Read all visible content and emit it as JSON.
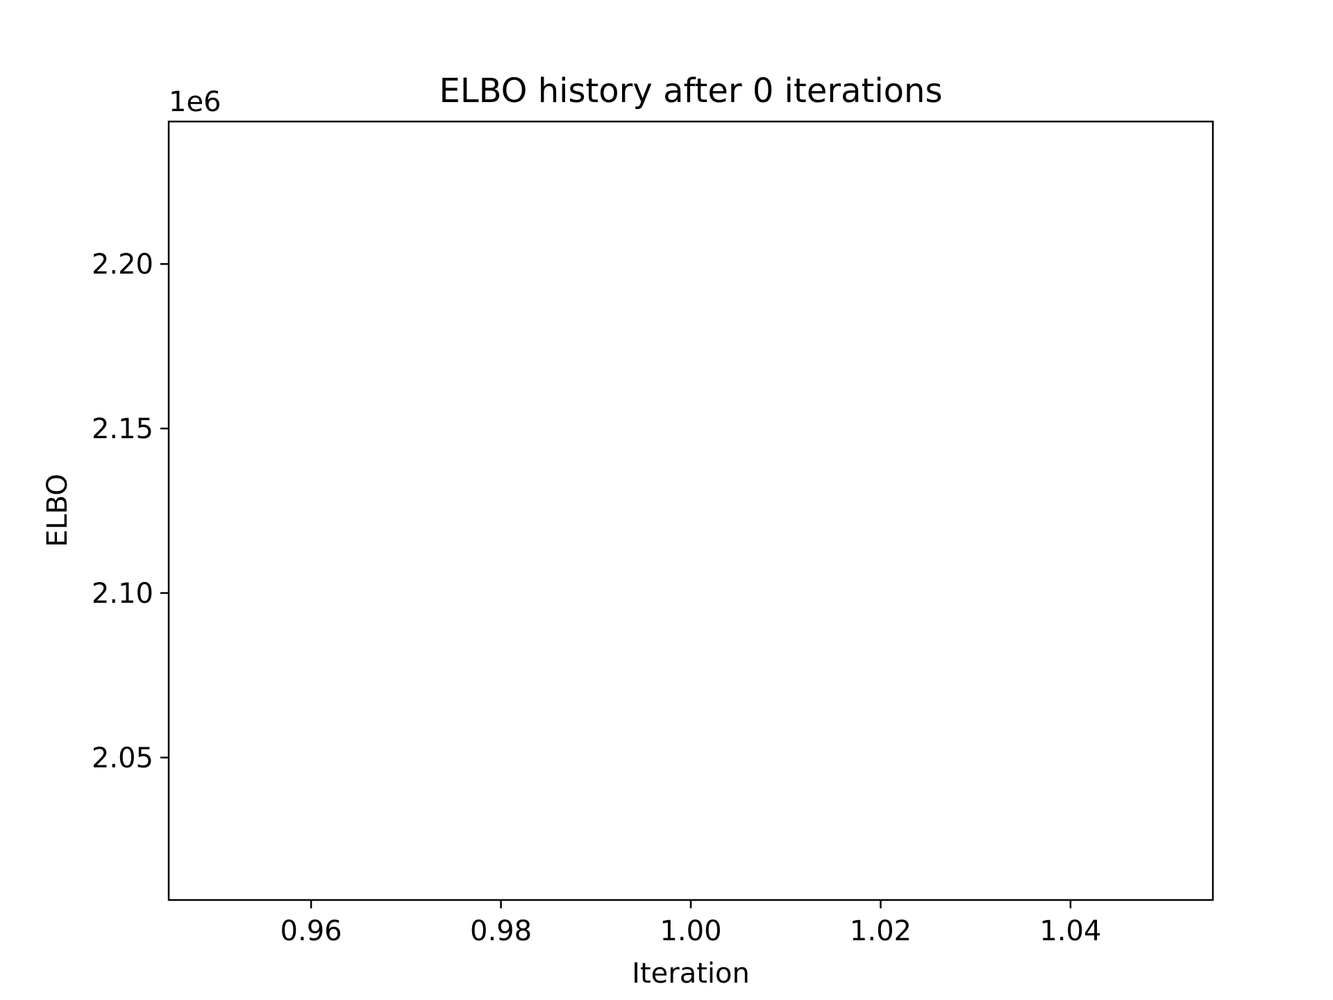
{
  "chart_data": {
    "type": "line",
    "title": "ELBO history after 0 iterations",
    "xlabel": "Iteration",
    "ylabel": "ELBO",
    "y_offset_label": "1e6",
    "xlim": [
      0.945,
      1.055
    ],
    "ylim": [
      2.0067,
      2.2433
    ],
    "x_ticks": [
      0.96,
      0.98,
      1.0,
      1.02,
      1.04
    ],
    "x_tick_labels": [
      "0.96",
      "0.98",
      "1.00",
      "1.02",
      "1.04"
    ],
    "y_ticks": [
      2.05,
      2.1,
      2.15,
      2.2
    ],
    "y_tick_labels": [
      "2.05",
      "2.10",
      "2.15",
      "2.20"
    ],
    "series": [],
    "grid": false,
    "colors": {
      "axes": "#000000",
      "background": "#ffffff"
    }
  }
}
